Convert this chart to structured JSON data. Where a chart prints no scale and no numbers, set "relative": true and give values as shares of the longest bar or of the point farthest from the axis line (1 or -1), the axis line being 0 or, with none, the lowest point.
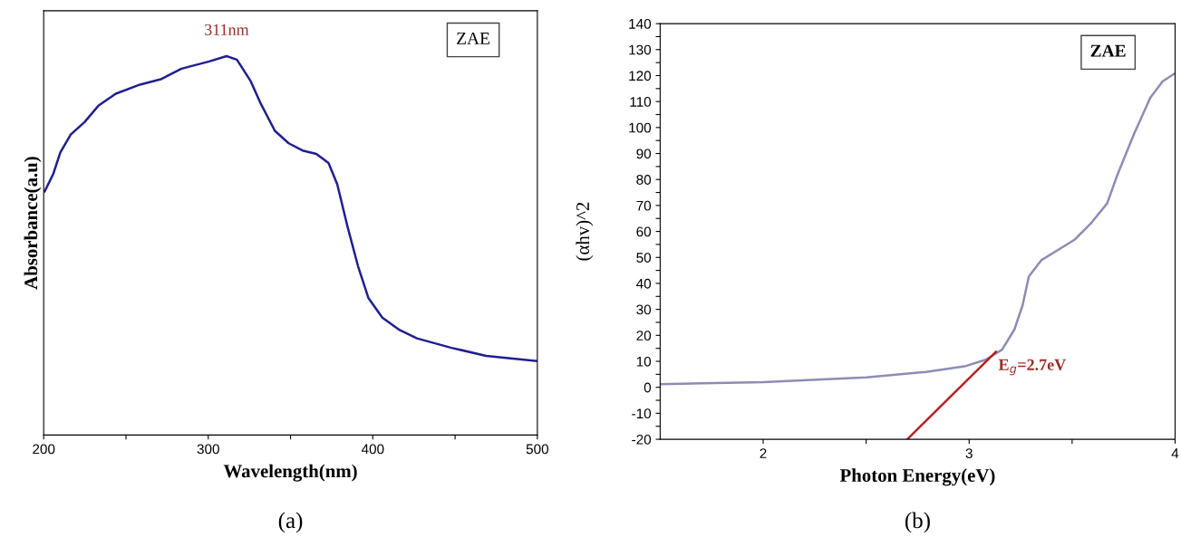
{
  "chart_data": [
    {
      "type": "line",
      "xlabel": "Wavelength(nm)",
      "ylabel": "Absorbance(a.u)",
      "relative": true,
      "grid": false,
      "legend": false,
      "xlim": [
        200,
        500
      ],
      "xticks": [
        200,
        {
          "value": 250,
          "label": null
        },
        300,
        {
          "value": 350,
          "label": null
        },
        400,
        {
          "value": 450,
          "label": null
        },
        500
      ],
      "x": [
        200.6,
        205.9,
        210.1,
        216.4,
        224.8,
        233.2,
        243.8,
        258.5,
        271.1,
        283.7,
        300.5,
        311.1,
        317.4,
        325.8,
        332.1,
        340.5,
        348.9,
        357.3,
        365.7,
        373.1,
        378.4,
        384.7,
        391.0,
        397.3,
        405.8,
        416.3,
        426.8,
        447.8,
        468.9,
        500
      ],
      "series": [
        {
          "color": "#1f1f8f",
          "values": [
            0.643,
            0.69,
            0.746,
            0.793,
            0.826,
            0.869,
            0.901,
            0.925,
            0.939,
            0.967,
            0.986,
            1.0,
            0.991,
            0.934,
            0.873,
            0.803,
            0.77,
            0.751,
            0.742,
            0.718,
            0.662,
            0.549,
            0.446,
            0.362,
            0.31,
            0.277,
            0.255,
            0.23,
            0.209,
            0.195
          ]
        }
      ],
      "annotations": [
        {
          "text": "311nm",
          "x": 311.1,
          "y": 1.0
        },
        "ZAE",
        "(a)"
      ]
    },
    {
      "type": "line",
      "xlabel": "Photon Energy(eV)",
      "ylabel": "(αhv)^2",
      "grid": false,
      "legend": false,
      "xlim": [
        1.5,
        4
      ],
      "xticks": [
        2,
        {
          "value": 2.5,
          "label": null
        },
        3,
        {
          "value": 3.5,
          "label": null
        },
        4
      ],
      "ylim": [
        -20,
        140
      ],
      "yticks": [
        -20,
        {
          "value": -15,
          "label": null
        },
        -10,
        {
          "value": -5,
          "label": null
        },
        0,
        {
          "value": 5,
          "label": null
        },
        10,
        {
          "value": 15,
          "label": null
        },
        20,
        {
          "value": 25,
          "label": null
        },
        30,
        {
          "value": 35,
          "label": null
        },
        40,
        {
          "value": 45,
          "label": null
        },
        50,
        {
          "value": 55,
          "label": null
        },
        60,
        {
          "value": 65,
          "label": null
        },
        70,
        {
          "value": 75,
          "label": null
        },
        80,
        {
          "value": 85,
          "label": null
        },
        90,
        {
          "value": 95,
          "label": null
        },
        100,
        {
          "value": 105,
          "label": null
        },
        110,
        {
          "value": 115,
          "label": null
        },
        120,
        {
          "value": 125,
          "label": null
        },
        130,
        {
          "value": 135,
          "label": null
        },
        140
      ],
      "series": [
        {
          "color": "#8c8cb4",
          "x": [
            1.5,
            2.0,
            2.5,
            2.79,
            2.985,
            3.08,
            3.16,
            3.22,
            3.26,
            3.29,
            3.35,
            3.43,
            3.51,
            3.59,
            3.67,
            3.72,
            3.8,
            3.88,
            3.94,
            4.0
          ],
          "values": [
            1.2,
            2.0,
            3.8,
            5.9,
            8.2,
            10.6,
            14.5,
            22.3,
            31.7,
            42.7,
            48.9,
            52.8,
            56.7,
            63.0,
            70.8,
            81.8,
            97.4,
            111.5,
            117.8,
            120.9
          ]
        },
        {
          "color": "#b22222",
          "x": [
            2.7,
            3.13
          ],
          "values": [
            -20,
            13.7
          ]
        }
      ],
      "annotations": [
        "ZAE",
        "(b)",
        {
          "text": "E$_{g}$=2.7eV",
          "x": 3.13,
          "y": 13.7
        }
      ]
    }
  ]
}
